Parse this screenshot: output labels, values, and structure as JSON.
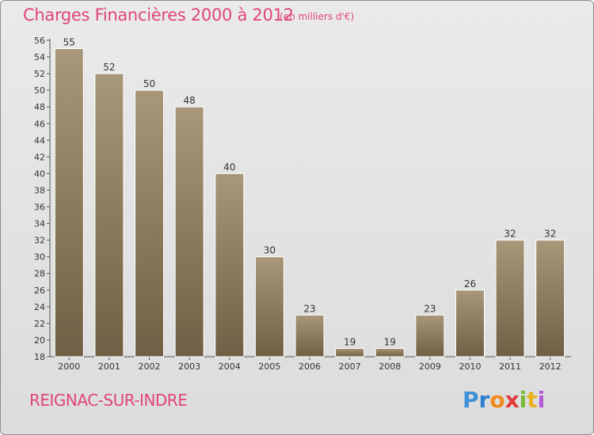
{
  "header": {
    "title": "Charges Financières 2000 à 2012",
    "subtitle": "(en milliers d'€)"
  },
  "footer": {
    "city": "REIGNAC-SUR-INDRE",
    "logo_text": "Proxiti"
  },
  "colors": {
    "title": "#e0457a",
    "bar_top": "#a89779",
    "bar_bottom": "#6f5f44",
    "background": "#e4e4e4",
    "logo_letters": [
      "#3f8fd6",
      "#2e7fd0",
      "#f08a1c",
      "#e23a3a",
      "#79b833",
      "#e8b21b",
      "#b35ad6"
    ]
  },
  "chart_data": {
    "type": "bar",
    "title": "Charges Financières 2000 à 2012",
    "subtitle": "(en milliers d'€)",
    "categories": [
      "2000",
      "2001",
      "2002",
      "2003",
      "2004",
      "2005",
      "2006",
      "2007",
      "2008",
      "2009",
      "2010",
      "2011",
      "2012"
    ],
    "values": [
      55,
      52,
      50,
      48,
      40,
      30,
      23,
      19,
      19,
      23,
      26,
      32,
      32
    ],
    "ylim": [
      18,
      56
    ],
    "yticks": [
      18,
      20,
      22,
      24,
      26,
      28,
      30,
      32,
      34,
      36,
      38,
      40,
      42,
      44,
      46,
      48,
      50,
      52,
      54,
      56
    ],
    "grid": false,
    "data_labels": true
  }
}
